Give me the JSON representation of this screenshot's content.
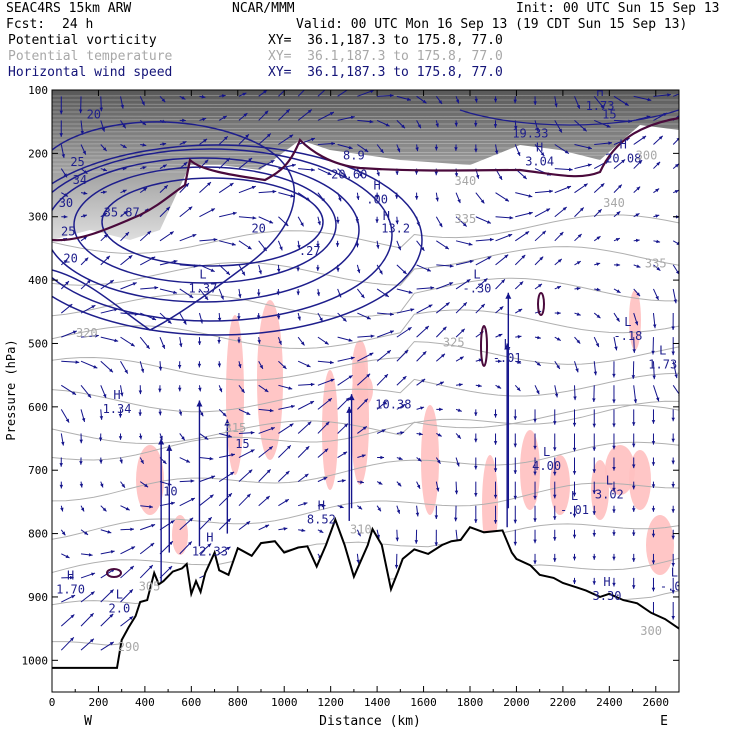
{
  "header": {
    "model": "SEAC4RS 15km ARW",
    "org": "NCAR/MMM",
    "init": "Init: 00 UTC Sun 15 Sep 13",
    "fcst_label": "Fcst:",
    "fcst_value": "24 h",
    "valid": "Valid: 00 UTC Mon 16 Sep 13 (19 CDT Sun 15 Sep 13)",
    "fields": [
      {
        "name": "Potential vorticity",
        "xy": "XY=  36.1,187.3 to 175.8, 77.0",
        "color": "#000000"
      },
      {
        "name": "Potential temperature",
        "xy": "XY=  36.1,187.3 to 175.8, 77.0",
        "color": "#a8a8a8"
      },
      {
        "name": "Horizontal wind speed",
        "xy": "XY=  36.1,187.3 to 175.8, 77.0",
        "color": "#141478"
      }
    ]
  },
  "chart_data": {
    "type": "cross-section",
    "xlabel": "Distance (km)",
    "ylabel": "Pressure (hPa)",
    "xlim": [
      0,
      2700
    ],
    "ylim": [
      1050,
      100
    ],
    "x_ticks": [
      "0",
      "200",
      "400",
      "600",
      "800",
      "1000",
      "1200",
      "1400",
      "1600",
      "1800",
      "2000",
      "2200",
      "2400",
      "2600"
    ],
    "y_ticks": [
      "100",
      "200",
      "300",
      "400",
      "500",
      "600",
      "700",
      "800",
      "900",
      "1000"
    ],
    "x_end_labels": {
      "left": "W",
      "right": "E"
    },
    "terrain_profile": {
      "x": [
        0,
        280,
        300,
        330,
        360,
        380,
        410,
        440,
        460,
        480,
        520,
        560,
        580,
        600,
        620,
        640,
        660,
        700,
        720,
        760,
        800,
        860,
        900,
        960,
        1000,
        1060,
        1100,
        1140,
        1180,
        1220,
        1260,
        1300,
        1360,
        1380,
        1420,
        1460,
        1490,
        1510,
        1560,
        1620,
        1680,
        1720,
        1760,
        1800,
        1860,
        1940,
        1980,
        2000,
        2060,
        2100,
        2160,
        2200,
        2260,
        2300,
        2360,
        2400,
        2460,
        2520,
        2580,
        2640,
        2700
      ],
      "p": [
        1012,
        1012,
        968,
        948,
        930,
        908,
        905,
        862,
        880,
        875,
        860,
        855,
        848,
        895,
        875,
        892,
        862,
        830,
        858,
        865,
        823,
        835,
        815,
        812,
        830,
        822,
        820,
        852,
        818,
        778,
        818,
        868,
        818,
        793,
        818,
        888,
        860,
        840,
        825,
        832,
        818,
        812,
        810,
        790,
        798,
        795,
        830,
        840,
        850,
        865,
        870,
        878,
        885,
        890,
        900,
        895,
        905,
        910,
        925,
        935,
        950
      ]
    },
    "pv_labels": [
      {
        "kind": "H",
        "value": "1.70",
        "x": 80,
        "p": 885
      },
      {
        "kind": "L",
        "value": "2.0",
        "x": 290,
        "p": 915
      },
      {
        "kind": "H",
        "value": "1.34",
        "x": 280,
        "p": 600
      },
      {
        "kind": "H",
        "value": "12.33",
        "x": 680,
        "p": 825
      },
      {
        "kind": "H",
        "value": "8.52",
        "x": 1160,
        "p": 775
      },
      {
        "kind": "H",
        "value": "1.73",
        "x": 2360,
        "p": 122
      },
      {
        "kind": "H",
        "value": "3.04",
        "x": 2100,
        "p": 210
      },
      {
        "kind": "H",
        "value": "20.08",
        "x": 2460,
        "p": 205
      },
      {
        "kind": "L",
        "value": "1.37",
        "x": 650,
        "p": 410
      },
      {
        "kind": "L",
        "value": "4.00",
        "x": 2130,
        "p": 690
      },
      {
        "kind": "L",
        "value": "3.02",
        "x": 2400,
        "p": 735
      },
      {
        "kind": "L",
        "value": "-.01",
        "x": 2250,
        "p": 760
      },
      {
        "kind": "L",
        "value": "-.18",
        "x": 2480,
        "p": 485
      },
      {
        "kind": "L",
        "value": "-.01",
        "x": 1960,
        "p": 520
      },
      {
        "kind": "L",
        "value": "1.73",
        "x": 2630,
        "p": 530
      },
      {
        "kind": "L",
        "value": "-.30",
        "x": 1830,
        "p": 410
      },
      {
        "kind": "H",
        "value": ".00",
        "x": 1400,
        "p": 270
      },
      {
        "kind": "H",
        "value": "3.30",
        "x": 2390,
        "p": 895
      },
      {
        "kind": "L",
        "value": "-.06",
        "x": 2680,
        "p": 880
      }
    ],
    "theta_labels": [
      {
        "value": "320",
        "x": 150,
        "p": 490
      },
      {
        "value": "325",
        "x": 1730,
        "p": 505
      },
      {
        "value": "335",
        "x": 1780,
        "p": 310
      },
      {
        "value": "340",
        "x": 1780,
        "p": 250
      },
      {
        "value": "340",
        "x": 2420,
        "p": 285
      },
      {
        "value": "335",
        "x": 2600,
        "p": 380
      },
      {
        "value": "300",
        "x": 2560,
        "p": 210
      },
      {
        "value": "300",
        "x": 2580,
        "p": 960
      },
      {
        "value": "315",
        "x": 790,
        "p": 640
      },
      {
        "value": "310",
        "x": 1330,
        "p": 800
      },
      {
        "value": "290",
        "x": 330,
        "p": 985
      },
      {
        "value": "305",
        "x": 420,
        "p": 890
      }
    ],
    "wind_speed_labels": [
      {
        "value": "20",
        "x": 180,
        "p": 145
      },
      {
        "value": "25",
        "x": 110,
        "p": 220
      },
      {
        "value": "30",
        "x": 60,
        "p": 285
      },
      {
        "value": "34",
        "x": 120,
        "p": 248
      },
      {
        "value": "35.87",
        "x": 300,
        "p": 300
      },
      {
        "value": "25",
        "x": 70,
        "p": 330
      },
      {
        "value": "20",
        "x": 80,
        "p": 372
      },
      {
        "value": "20",
        "x": 890,
        "p": 325
      },
      {
        "value": "25",
        "x": 1090,
        "p": 90
      },
      {
        "value": "10",
        "x": 510,
        "p": 740
      },
      {
        "value": "15",
        "x": 820,
        "p": 665
      },
      {
        "value": "13.2",
        "x": 1480,
        "p": 325
      },
      {
        "value": "10.38",
        "x": 1470,
        "p": 603
      },
      {
        "value": "19.33",
        "x": 2060,
        "p": 175
      },
      {
        "value": "8.9",
        "x": 1300,
        "p": 210
      },
      {
        "value": "15",
        "x": 2400,
        "p": 145
      },
      {
        "value": "20.60",
        "x": 1280,
        "p": 240
      },
      {
        "value": ".27",
        "x": 1110,
        "p": 360
      },
      {
        "value": "H",
        "x": 1440,
        "p": 305
      }
    ]
  }
}
